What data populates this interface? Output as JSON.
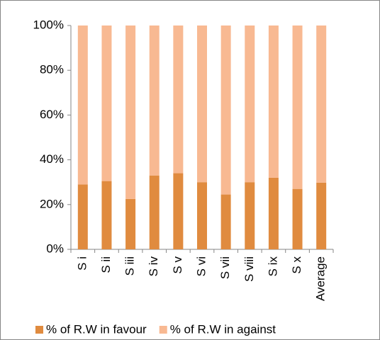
{
  "chart_data": {
    "type": "stacked_bar",
    "categories": [
      "S i",
      "S ii",
      "S iii",
      "S iv",
      "S v",
      "S vi",
      "S vii",
      "S viii",
      "S ix",
      "S x",
      "Average"
    ],
    "series": [
      {
        "name": "% of R.W in favour",
        "color": "#e08b3f",
        "values": [
          29,
          30.5,
          22.5,
          33,
          34,
          30,
          24.5,
          30,
          32,
          27,
          29.8
        ]
      },
      {
        "name": "% of R.W in against",
        "color": "#f8b992",
        "values": [
          71,
          69.5,
          77.5,
          67,
          66,
          70,
          75.5,
          70,
          68,
          73,
          70.2
        ]
      }
    ],
    "ylim": [
      0,
      100
    ],
    "yticks": [
      {
        "value": 0,
        "label": "0%"
      },
      {
        "value": 20,
        "label": "20%"
      },
      {
        "value": 40,
        "label": "40%"
      },
      {
        "value": 60,
        "label": "60%"
      },
      {
        "value": 80,
        "label": "80%"
      },
      {
        "value": 100,
        "label": "100%"
      }
    ],
    "legend": "bottom"
  }
}
